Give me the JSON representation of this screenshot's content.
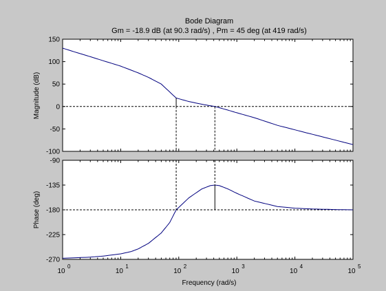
{
  "chart_data": {
    "type": "line",
    "title": "Bode Diagram",
    "subtitle": "Gm = -18.9 dB (at 90.3 rad/s) ,  Pm = 45 deg (at 419 rad/s)",
    "xlabel": "Frequency  (rad/s)",
    "xscale": "log",
    "xlim": [
      1,
      100000
    ],
    "x_ticks": [
      1,
      10,
      100,
      1000,
      10000,
      100000
    ],
    "x_tick_labels": [
      {
        "base": "10",
        "exp": "0"
      },
      {
        "base": "10",
        "exp": "1"
      },
      {
        "base": "10",
        "exp": "2"
      },
      {
        "base": "10",
        "exp": "3"
      },
      {
        "base": "10",
        "exp": "4"
      },
      {
        "base": "10",
        "exp": "5"
      }
    ],
    "line_color": "#00007f",
    "marker_color": "#000000",
    "background": "#ffffff",
    "figure_background": "#c8c8c8",
    "grid": false,
    "magnitude": {
      "ylabel": "Magnitude (dB)",
      "ylim": [
        -100,
        150
      ],
      "y_ticks": [
        150,
        100,
        50,
        0,
        -50,
        -100
      ],
      "y_tick_labels": [
        "150",
        "100",
        "50",
        "0",
        "-50",
        "-100"
      ],
      "reference_value": 0,
      "series": [
        {
          "x": [
            1,
            2,
            3,
            5,
            10,
            20,
            30,
            50,
            90.3,
            150,
            250,
            419,
            700,
            1000,
            2000,
            5000,
            10000,
            20000,
            50000,
            100000
          ],
          "values": [
            130,
            118,
            111,
            102,
            90,
            75,
            65,
            50,
            18.9,
            11,
            5,
            0,
            -8,
            -14,
            -25,
            -42,
            -52,
            -62,
            -75,
            -85
          ]
        }
      ]
    },
    "phase": {
      "ylabel": "Phase (deg)",
      "ylim": [
        -270,
        -90
      ],
      "y_ticks": [
        -90,
        -135,
        -180,
        -225,
        -270
      ],
      "y_tick_labels": [
        "-90",
        "-135",
        "-180",
        "-225",
        "-270"
      ],
      "reference_value": -180,
      "series": [
        {
          "x": [
            1,
            3,
            5,
            10,
            15,
            20,
            30,
            50,
            70,
            90.3,
            150,
            250,
            350,
            419,
            500,
            700,
            1000,
            2000,
            5000,
            10000,
            20000,
            50000,
            100000
          ],
          "values": [
            -268,
            -266,
            -264,
            -260,
            -256,
            -251,
            -241,
            -222,
            -203,
            -180,
            -158,
            -142,
            -136,
            -135,
            -136,
            -142,
            -150,
            -164,
            -174,
            -177,
            -178.5,
            -179.5,
            -180
          ]
        }
      ]
    },
    "gain_margin": {
      "value_db": -18.9,
      "frequency": 90.3
    },
    "phase_margin": {
      "value_deg": 45,
      "frequency": 419
    }
  }
}
